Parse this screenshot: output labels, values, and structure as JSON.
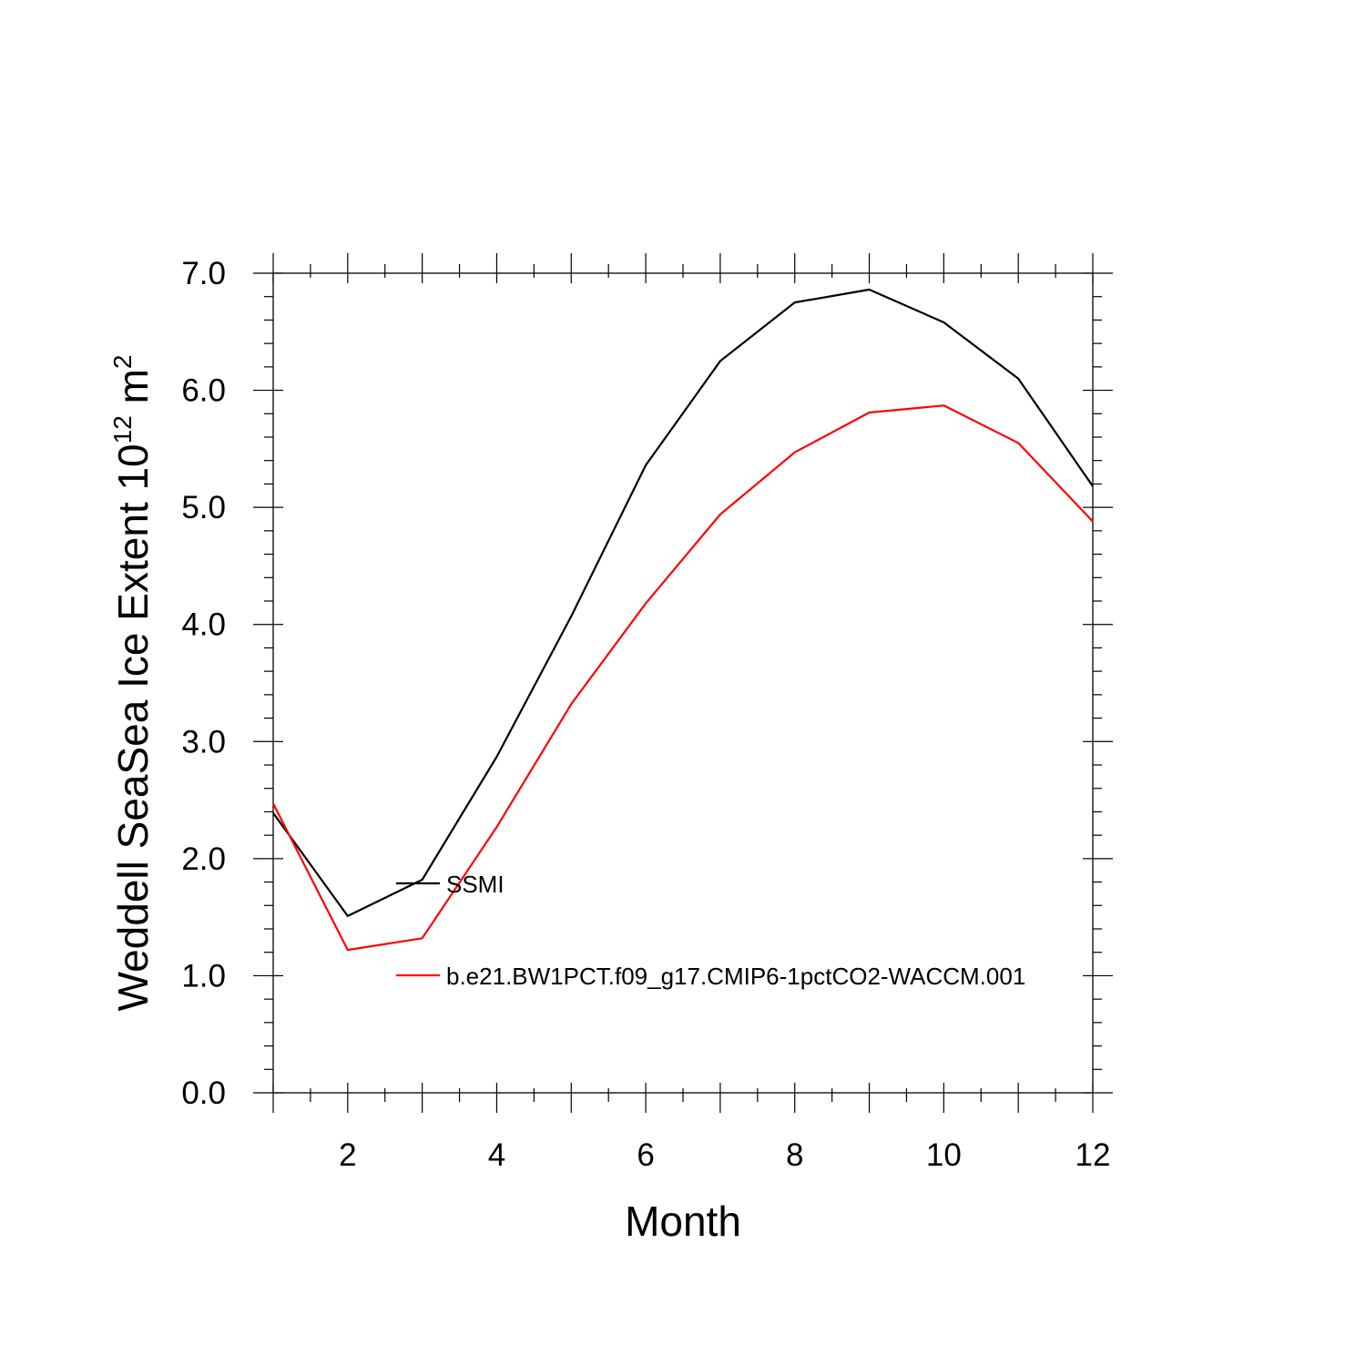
{
  "chart_data": {
    "type": "line",
    "title": "",
    "xlabel": "Month",
    "ylabel": {
      "prefix": "Weddell SeaSea Ice Extent 10",
      "exponent": "12",
      "unit": "m",
      "unit_exponent": "2"
    },
    "xlim": [
      1,
      12
    ],
    "ylim": [
      0,
      7
    ],
    "x_ticks": [
      2,
      4,
      6,
      8,
      10,
      12
    ],
    "y_ticks": [
      0.0,
      1.0,
      2.0,
      3.0,
      4.0,
      5.0,
      6.0,
      7.0
    ],
    "y_tick_labels": [
      "0.0",
      "1.0",
      "2.0",
      "3.0",
      "4.0",
      "5.0",
      "6.0",
      "7.0"
    ],
    "x": [
      1,
      2,
      3,
      4,
      5,
      6,
      7,
      8,
      9,
      10,
      11,
      12
    ],
    "series": [
      {
        "name": "SSMI",
        "color": "#000000",
        "values": [
          2.39,
          1.51,
          1.82,
          2.87,
          4.07,
          5.36,
          6.25,
          6.75,
          6.86,
          6.58,
          6.1,
          5.18
        ]
      },
      {
        "name": "b.e21.BW1PCT.f09_g17.CMIP6-1pctCO2-WACCM.001",
        "color": "#ff0000",
        "values": [
          2.47,
          1.22,
          1.32,
          2.27,
          3.32,
          4.18,
          4.94,
          5.47,
          5.81,
          5.87,
          5.55,
          4.88
        ]
      }
    ],
    "legend_position": "inside-lower-left",
    "grid": false
  }
}
